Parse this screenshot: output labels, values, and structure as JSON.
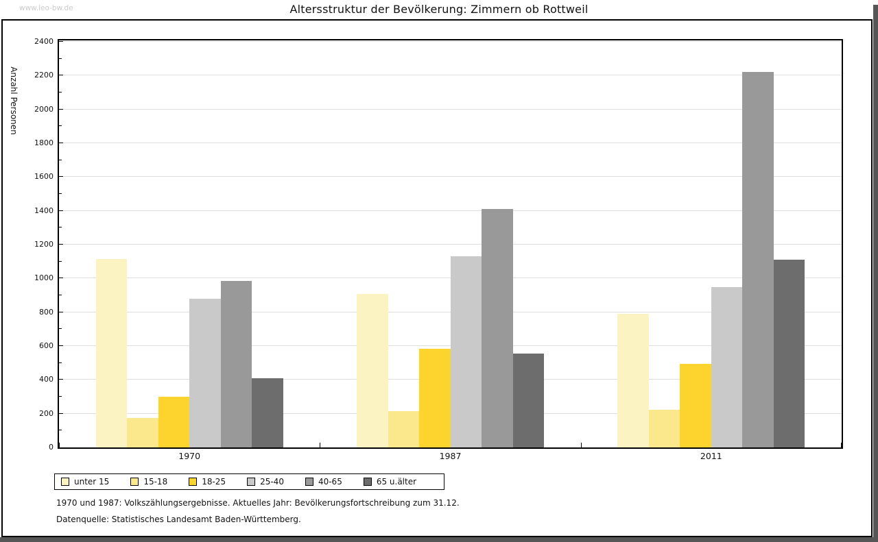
{
  "watermark": "www.leo-bw.de",
  "title": "Altersstruktur der Bevölkerung: Zimmern ob Rottweil",
  "y_axis": {
    "label": "Anzahl Personen",
    "min": 0,
    "max": 2400,
    "major_tick_step": 200,
    "minor_tick_step": 100
  },
  "footnotes": {
    "line1": "1970 und 1987: Volkszählungsergebnisse. Aktuelles Jahr: Bevölkerungsfortschreibung zum 31.12.",
    "line2": "Datenquelle: Statistisches Landesamt Baden-Württemberg."
  },
  "colors": {
    "grid": "#dedede",
    "axis": "#000000",
    "watermark": "#cbcbcb",
    "window_chrome": "#565656"
  },
  "chart_data": {
    "type": "bar",
    "title": "Altersstruktur der Bevölkerung: Zimmern ob Rottweil",
    "xlabel": "",
    "ylabel": "Anzahl Personen",
    "ylim": [
      0,
      2400
    ],
    "grid": true,
    "legend_position": "bottom",
    "categories": [
      "1970",
      "1987",
      "2011"
    ],
    "series": [
      {
        "name": "unter 15",
        "color": "#FBF3C2",
        "values": [
          1115,
          910,
          790
        ]
      },
      {
        "name": "15-18",
        "color": "#FBE88C",
        "values": [
          175,
          215,
          225
        ]
      },
      {
        "name": "18-25",
        "color": "#FDD32E",
        "values": [
          300,
          585,
          495
        ]
      },
      {
        "name": "25-40",
        "color": "#C9C9C9",
        "values": [
          880,
          1130,
          950
        ]
      },
      {
        "name": "40-65",
        "color": "#999999",
        "values": [
          985,
          1410,
          2220
        ]
      },
      {
        "name": "65 u.älter",
        "color": "#6D6D6D",
        "values": [
          410,
          555,
          1110
        ]
      }
    ]
  }
}
